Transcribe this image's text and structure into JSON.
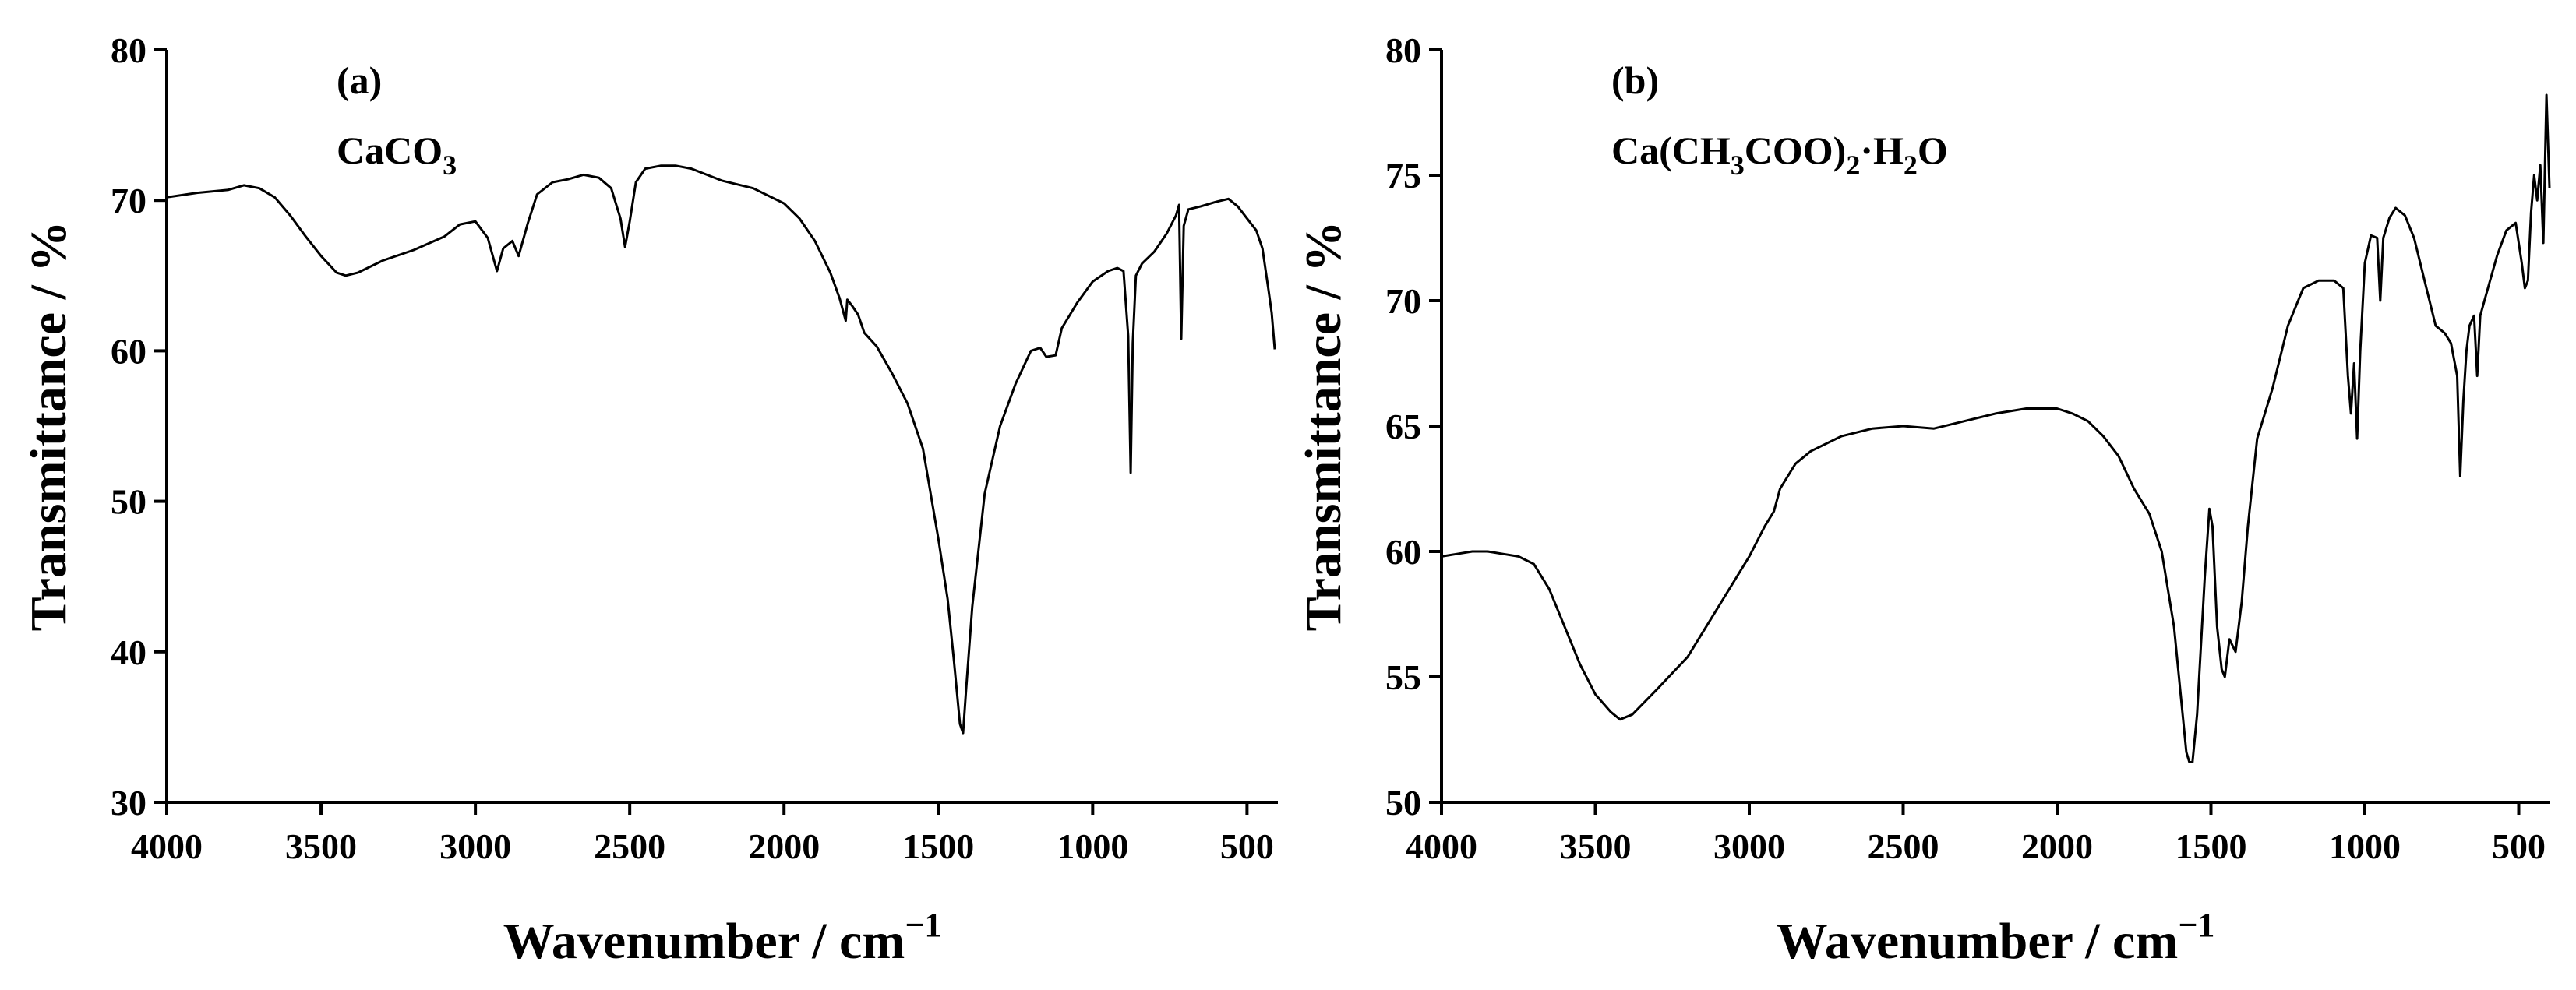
{
  "chart_data": [
    {
      "type": "line",
      "panel_label": "(a)",
      "compound": {
        "parts": [
          {
            "t": "CaCO"
          },
          {
            "t": "3",
            "sub": true
          }
        ]
      },
      "xlabel": "Wavenumber / cm",
      "xlabel_sup": "−1",
      "ylabel": "Transmittance / %",
      "xlim": [
        4000,
        400
      ],
      "ylim": [
        30,
        80
      ],
      "xticks": [
        4000,
        3500,
        3000,
        2500,
        2000,
        1500,
        1000,
        500
      ],
      "yticks": [
        30,
        40,
        50,
        60,
        70,
        80
      ],
      "series": [
        {
          "name": "CaCO3",
          "points": [
            [
              4000,
              70.2
            ],
            [
              3900,
              70.5
            ],
            [
              3800,
              70.7
            ],
            [
              3750,
              71.0
            ],
            [
              3700,
              70.8
            ],
            [
              3650,
              70.2
            ],
            [
              3600,
              69.0
            ],
            [
              3550,
              67.6
            ],
            [
              3500,
              66.3
            ],
            [
              3450,
              65.2
            ],
            [
              3420,
              65.0
            ],
            [
              3380,
              65.2
            ],
            [
              3300,
              66.0
            ],
            [
              3200,
              66.7
            ],
            [
              3100,
              67.6
            ],
            [
              3050,
              68.4
            ],
            [
              3000,
              68.6
            ],
            [
              2960,
              67.5
            ],
            [
              2930,
              65.3
            ],
            [
              2910,
              66.8
            ],
            [
              2880,
              67.3
            ],
            [
              2860,
              66.3
            ],
            [
              2830,
              68.5
            ],
            [
              2800,
              70.4
            ],
            [
              2750,
              71.2
            ],
            [
              2700,
              71.4
            ],
            [
              2650,
              71.7
            ],
            [
              2600,
              71.5
            ],
            [
              2560,
              70.8
            ],
            [
              2530,
              68.8
            ],
            [
              2515,
              66.9
            ],
            [
              2500,
              68.6
            ],
            [
              2480,
              71.2
            ],
            [
              2450,
              72.1
            ],
            [
              2400,
              72.3
            ],
            [
              2350,
              72.3
            ],
            [
              2300,
              72.1
            ],
            [
              2250,
              71.7
            ],
            [
              2200,
              71.3
            ],
            [
              2100,
              70.8
            ],
            [
              2000,
              69.8
            ],
            [
              1950,
              68.8
            ],
            [
              1900,
              67.3
            ],
            [
              1850,
              65.2
            ],
            [
              1820,
              63.5
            ],
            [
              1800,
              62.0
            ],
            [
              1795,
              63.4
            ],
            [
              1780,
              63.0
            ],
            [
              1760,
              62.4
            ],
            [
              1740,
              61.2
            ],
            [
              1700,
              60.3
            ],
            [
              1650,
              58.5
            ],
            [
              1600,
              56.5
            ],
            [
              1550,
              53.5
            ],
            [
              1500,
              47.5
            ],
            [
              1470,
              43.5
            ],
            [
              1450,
              39.5
            ],
            [
              1430,
              35.2
            ],
            [
              1420,
              34.6
            ],
            [
              1410,
              37.5
            ],
            [
              1390,
              43.0
            ],
            [
              1350,
              50.5
            ],
            [
              1300,
              55.0
            ],
            [
              1250,
              57.8
            ],
            [
              1200,
              60.0
            ],
            [
              1170,
              60.2
            ],
            [
              1150,
              59.6
            ],
            [
              1120,
              59.7
            ],
            [
              1100,
              61.5
            ],
            [
              1050,
              63.2
            ],
            [
              1000,
              64.6
            ],
            [
              950,
              65.3
            ],
            [
              920,
              65.5
            ],
            [
              900,
              65.3
            ],
            [
              885,
              61.0
            ],
            [
              877,
              51.9
            ],
            [
              870,
              60.5
            ],
            [
              860,
              65.0
            ],
            [
              840,
              65.8
            ],
            [
              800,
              66.6
            ],
            [
              760,
              67.8
            ],
            [
              730,
              69.0
            ],
            [
              720,
              69.7
            ],
            [
              713,
              60.8
            ],
            [
              705,
              68.3
            ],
            [
              690,
              69.4
            ],
            [
              650,
              69.6
            ],
            [
              600,
              69.9
            ],
            [
              560,
              70.1
            ],
            [
              530,
              69.6
            ],
            [
              500,
              68.8
            ],
            [
              470,
              68.0
            ],
            [
              450,
              66.8
            ],
            [
              430,
              64.0
            ],
            [
              420,
              62.5
            ],
            [
              410,
              60.1
            ]
          ]
        }
      ]
    },
    {
      "type": "line",
      "panel_label": "(b)",
      "compound": {
        "parts": [
          {
            "t": "Ca(CH"
          },
          {
            "t": "3",
            "sub": true
          },
          {
            "t": "COO)"
          },
          {
            "t": "2",
            "sub": true
          },
          {
            "t": "·H"
          },
          {
            "t": "2",
            "sub": true
          },
          {
            "t": "O"
          }
        ]
      },
      "xlabel": "Wavenumber / cm",
      "xlabel_sup": "−1",
      "ylabel": "Transmittance / %",
      "xlim": [
        4000,
        400
      ],
      "ylim": [
        50,
        80
      ],
      "xticks": [
        4000,
        3500,
        3000,
        2500,
        2000,
        1500,
        1000,
        500
      ],
      "yticks": [
        50,
        55,
        60,
        65,
        70,
        75,
        80
      ],
      "series": [
        {
          "name": "Ca(CH3COO)2·H2O",
          "points": [
            [
              4000,
              59.8
            ],
            [
              3950,
              59.9
            ],
            [
              3900,
              60.0
            ],
            [
              3850,
              60.0
            ],
            [
              3800,
              59.9
            ],
            [
              3750,
              59.8
            ],
            [
              3700,
              59.5
            ],
            [
              3650,
              58.5
            ],
            [
              3600,
              57.0
            ],
            [
              3550,
              55.5
            ],
            [
              3500,
              54.3
            ],
            [
              3450,
              53.6
            ],
            [
              3420,
              53.3
            ],
            [
              3380,
              53.5
            ],
            [
              3300,
              54.5
            ],
            [
              3200,
              55.8
            ],
            [
              3100,
              57.8
            ],
            [
              3000,
              59.8
            ],
            [
              2950,
              61.0
            ],
            [
              2920,
              61.6
            ],
            [
              2900,
              62.5
            ],
            [
              2850,
              63.5
            ],
            [
              2800,
              64.0
            ],
            [
              2700,
              64.6
            ],
            [
              2600,
              64.9
            ],
            [
              2500,
              65.0
            ],
            [
              2400,
              64.9
            ],
            [
              2300,
              65.2
            ],
            [
              2200,
              65.5
            ],
            [
              2100,
              65.7
            ],
            [
              2000,
              65.7
            ],
            [
              1950,
              65.5
            ],
            [
              1900,
              65.2
            ],
            [
              1850,
              64.6
            ],
            [
              1800,
              63.8
            ],
            [
              1750,
              62.5
            ],
            [
              1700,
              61.5
            ],
            [
              1660,
              60.0
            ],
            [
              1620,
              57.0
            ],
            [
              1600,
              54.5
            ],
            [
              1580,
              52.0
            ],
            [
              1570,
              51.6
            ],
            [
              1560,
              51.6
            ],
            [
              1545,
              53.5
            ],
            [
              1520,
              59.0
            ],
            [
              1505,
              61.7
            ],
            [
              1495,
              61.0
            ],
            [
              1480,
              57.0
            ],
            [
              1465,
              55.3
            ],
            [
              1455,
              55.0
            ],
            [
              1440,
              56.5
            ],
            [
              1420,
              56.0
            ],
            [
              1400,
              58.0
            ],
            [
              1380,
              61.0
            ],
            [
              1350,
              64.5
            ],
            [
              1300,
              66.5
            ],
            [
              1250,
              69.0
            ],
            [
              1200,
              70.5
            ],
            [
              1150,
              70.8
            ],
            [
              1100,
              70.8
            ],
            [
              1070,
              70.5
            ],
            [
              1055,
              67.0
            ],
            [
              1045,
              65.5
            ],
            [
              1035,
              67.5
            ],
            [
              1025,
              64.5
            ],
            [
              1015,
              68.0
            ],
            [
              1000,
              71.5
            ],
            [
              980,
              72.6
            ],
            [
              960,
              72.5
            ],
            [
              950,
              70.0
            ],
            [
              940,
              72.5
            ],
            [
              920,
              73.3
            ],
            [
              900,
              73.7
            ],
            [
              870,
              73.4
            ],
            [
              840,
              72.5
            ],
            [
              800,
              70.5
            ],
            [
              770,
              69.0
            ],
            [
              740,
              68.7
            ],
            [
              720,
              68.3
            ],
            [
              700,
              67.0
            ],
            [
              690,
              63.0
            ],
            [
              680,
              66.0
            ],
            [
              670,
              68.0
            ],
            [
              660,
              69.0
            ],
            [
              645,
              69.4
            ],
            [
              635,
              67.0
            ],
            [
              625,
              69.4
            ],
            [
              600,
              70.5
            ],
            [
              570,
              71.8
            ],
            [
              540,
              72.8
            ],
            [
              510,
              73.1
            ],
            [
              490,
              71.5
            ],
            [
              480,
              70.5
            ],
            [
              470,
              70.8
            ],
            [
              460,
              73.5
            ],
            [
              450,
              75.0
            ],
            [
              440,
              74.0
            ],
            [
              430,
              75.4
            ],
            [
              420,
              72.3
            ],
            [
              410,
              78.2
            ],
            [
              400,
              74.5
            ]
          ]
        }
      ]
    }
  ]
}
